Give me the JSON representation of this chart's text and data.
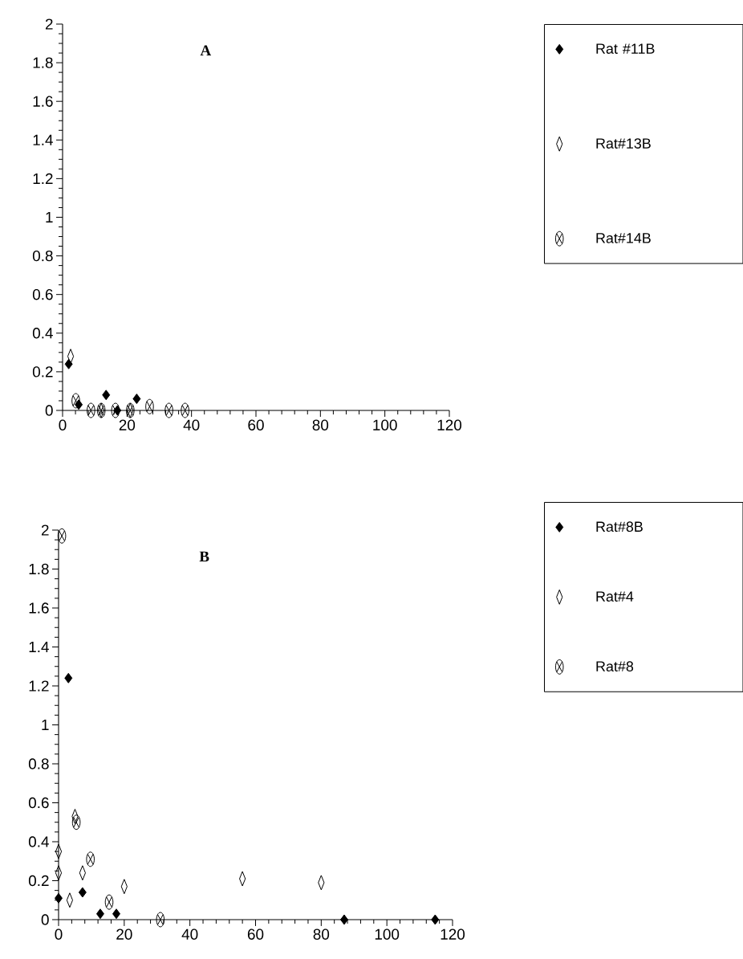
{
  "chart_data": [
    {
      "type": "scatter",
      "title": "A",
      "xlim": [
        0,
        120
      ],
      "ylim": [
        0,
        2
      ],
      "xticks": [
        0,
        20,
        40,
        60,
        80,
        100,
        120
      ],
      "yticks": [
        0,
        0.2,
        0.4,
        0.6,
        0.8,
        1,
        1.2,
        1.4,
        1.6,
        1.8,
        2
      ],
      "legend": "right",
      "grid": false,
      "series": [
        {
          "name": "Rat #11B",
          "color": "#000000",
          "marker": "diamond",
          "x": [
            1.9,
            5,
            13.5,
            17,
            23
          ],
          "values": [
            0.24,
            0.03,
            0.08,
            0.0,
            0.06
          ]
        },
        {
          "name": "Rat#13B",
          "color": "#000000",
          "marker": "diamond",
          "x": [
            2.5,
            12,
            21
          ],
          "values": [
            0.28,
            0.0,
            0.0
          ]
        },
        {
          "name": "Rat#14B",
          "color": "#000000",
          "marker": "cross",
          "x": [
            4.1,
            8.8,
            12,
            16.4,
            21,
            27,
            33,
            38
          ],
          "values": [
            0.05,
            0.0,
            0.0,
            0.0,
            0.0,
            0.02,
            0.0,
            0.0
          ]
        }
      ]
    },
    {
      "type": "scatter",
      "title": "B",
      "xlim": [
        0,
        120
      ],
      "ylim": [
        0,
        2
      ],
      "xticks": [
        0,
        20,
        40,
        60,
        80,
        100,
        120
      ],
      "yticks": [
        0,
        0.2,
        0.4,
        0.6,
        0.8,
        1,
        1.2,
        1.4,
        1.6,
        1.8,
        2
      ],
      "legend": "right",
      "grid": false,
      "series": [
        {
          "name": "Rat#8B",
          "color": "#000000",
          "marker": "diamond",
          "x": [
            0,
            3,
            7.3,
            12.7,
            17.6,
            87,
            114.7
          ],
          "values": [
            0.11,
            1.24,
            0.14,
            0.03,
            0.03,
            0.0,
            0.0
          ]
        },
        {
          "name": "Rat#4",
          "color": "#000000",
          "marker": "diamond",
          "x": [
            0,
            0,
            3.4,
            5,
            7.3,
            20,
            56,
            80
          ],
          "values": [
            0.35,
            0.24,
            0.1,
            0.53,
            0.24,
            0.17,
            0.21,
            0.19
          ]
        },
        {
          "name": "Rat#8",
          "color": "#000000",
          "marker": "cross",
          "x": [
            1,
            5.4,
            9.7,
            15.4,
            31
          ],
          "values": [
            1.97,
            0.5,
            0.31,
            0.09,
            0.0
          ]
        }
      ]
    }
  ]
}
